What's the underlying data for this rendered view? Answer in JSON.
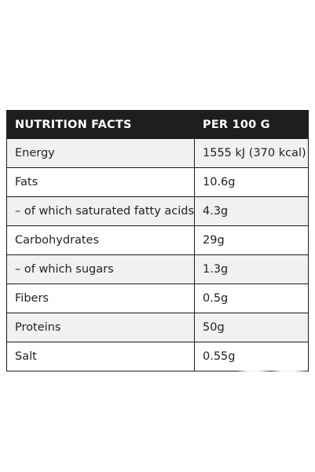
{
  "table": {
    "header": {
      "nutrient": "NUTRITION FACTS",
      "value": "PER 100 G"
    },
    "rows": [
      {
        "nutrient": "Energy",
        "value": "1555 kJ (370 kcal)"
      },
      {
        "nutrient": "Fats",
        "value": "10.6g"
      },
      {
        "nutrient": "– of which saturated fatty acids",
        "value": "4.3g"
      },
      {
        "nutrient": "Carbohydrates",
        "value": "29g"
      },
      {
        "nutrient": "– of which sugars",
        "value": "1.3g"
      },
      {
        "nutrient": "Fibers",
        "value": "0.5g"
      },
      {
        "nutrient": "Proteins",
        "value": "50g"
      },
      {
        "nutrient": "Salt",
        "value": "0.55g"
      }
    ]
  }
}
